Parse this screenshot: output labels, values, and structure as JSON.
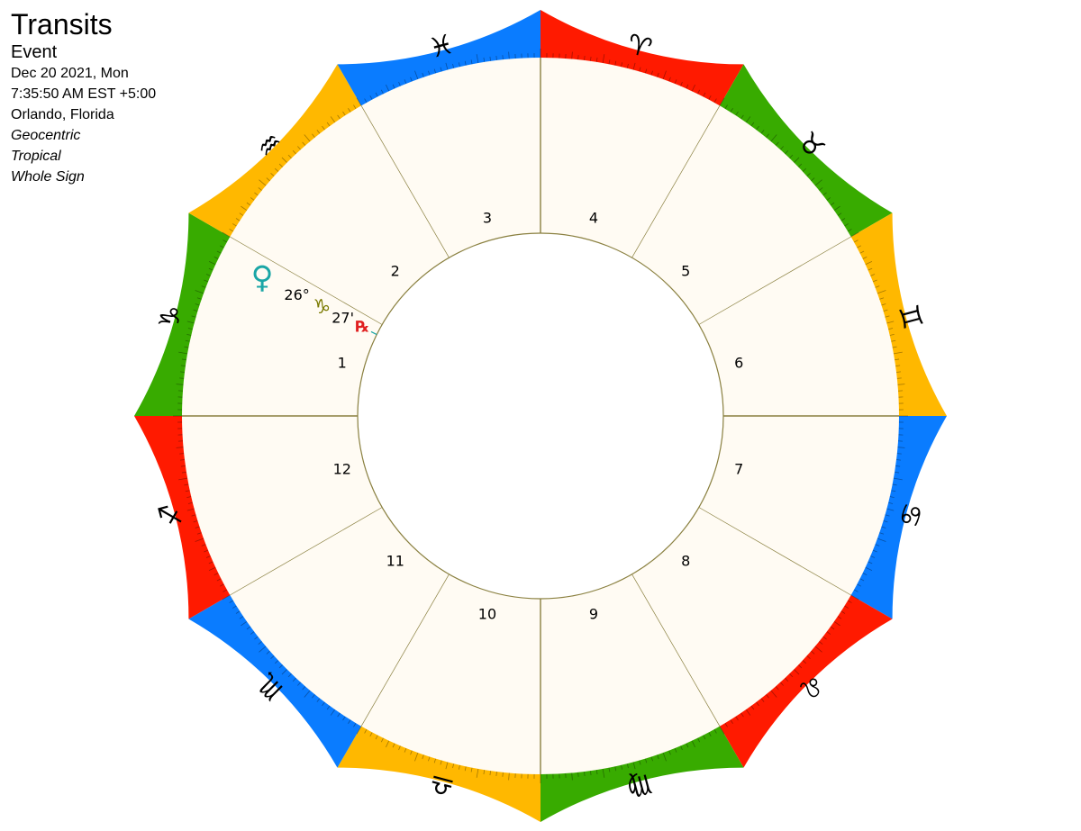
{
  "header": {
    "title": "Transits",
    "event_label": "Event",
    "date": "Dec 20 2021, Mon",
    "time": "7:35:50 AM EST +5:00",
    "location": "Orlando, Florida",
    "coordinate_system": "Geocentric",
    "zodiac": "Tropical",
    "house_system": "Whole Sign"
  },
  "colors": {
    "fire": "#ff1a00",
    "earth": "#38ab00",
    "air": "#ffb800",
    "water": "#0a7cff",
    "house_bg": "#fffbf3",
    "line": "#8a8040",
    "venus": "#1aa6a6",
    "capricorn_marker": "#7a7a00",
    "retrograde": "#e02020"
  },
  "signs": [
    {
      "name": "Capricorn",
      "icon": "capricorn-icon",
      "glyph": "♑",
      "element": "earth"
    },
    {
      "name": "Aquarius",
      "icon": "aquarius-icon",
      "glyph": "♒",
      "element": "air"
    },
    {
      "name": "Pisces",
      "icon": "pisces-icon",
      "glyph": "♓",
      "element": "water"
    },
    {
      "name": "Aries",
      "icon": "aries-icon",
      "glyph": "♈",
      "element": "fire"
    },
    {
      "name": "Taurus",
      "icon": "taurus-icon",
      "glyph": "♉",
      "element": "earth"
    },
    {
      "name": "Gemini",
      "icon": "gemini-icon",
      "glyph": "♊",
      "element": "air"
    },
    {
      "name": "Cancer",
      "icon": "cancer-icon",
      "glyph": "♋",
      "element": "water"
    },
    {
      "name": "Leo",
      "icon": "leo-icon",
      "glyph": "♌",
      "element": "fire"
    },
    {
      "name": "Virgo",
      "icon": "virgo-icon",
      "glyph": "♍",
      "element": "earth"
    },
    {
      "name": "Libra",
      "icon": "libra-icon",
      "glyph": "♎",
      "element": "air"
    },
    {
      "name": "Scorpio",
      "icon": "scorpio-icon",
      "glyph": "♏",
      "element": "water"
    },
    {
      "name": "Sagittarius",
      "icon": "sagittarius-icon",
      "glyph": "♐",
      "element": "fire"
    }
  ],
  "houses": [
    "1",
    "2",
    "3",
    "4",
    "5",
    "6",
    "7",
    "8",
    "9",
    "10",
    "11",
    "12"
  ],
  "planets": [
    {
      "name": "Venus",
      "icon": "venus-icon",
      "glyph": "♀",
      "sign": "Capricorn",
      "sign_glyph": "♑",
      "degree_label": "26°",
      "minute_label": "27'",
      "retrograde_label": "℞",
      "longitude": 296.45
    }
  ]
}
